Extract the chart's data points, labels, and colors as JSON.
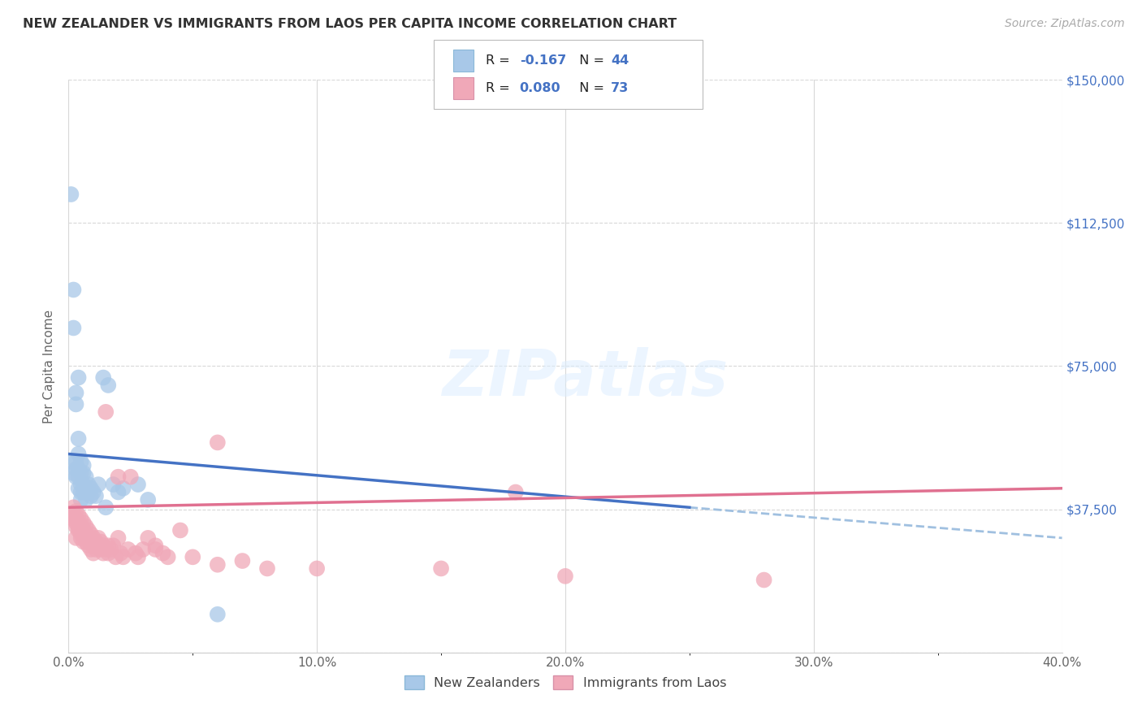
{
  "title": "NEW ZEALANDER VS IMMIGRANTS FROM LAOS PER CAPITA INCOME CORRELATION CHART",
  "source": "Source: ZipAtlas.com",
  "ylabel": "Per Capita Income",
  "yticks": [
    0,
    37500,
    75000,
    112500,
    150000
  ],
  "xlim": [
    0.0,
    0.4
  ],
  "ylim": [
    0,
    150000
  ],
  "background_color": "#ffffff",
  "grid_color": "#d8d8d8",
  "title_color": "#333333",
  "source_color": "#aaaaaa",
  "blue_color": "#a8c8e8",
  "pink_color": "#f0a8b8",
  "blue_line_color": "#4472c4",
  "pink_line_color": "#e07090",
  "dash_line_color": "#a0c0e0",
  "right_label_color": "#4472c4",
  "R_blue": "-0.167",
  "N_blue": "44",
  "R_pink": "0.080",
  "N_pink": "73",
  "nz_x": [
    0.001,
    0.002,
    0.002,
    0.003,
    0.003,
    0.003,
    0.003,
    0.003,
    0.004,
    0.004,
    0.004,
    0.004,
    0.004,
    0.004,
    0.005,
    0.005,
    0.005,
    0.005,
    0.005,
    0.006,
    0.006,
    0.006,
    0.006,
    0.007,
    0.007,
    0.007,
    0.008,
    0.008,
    0.009,
    0.009,
    0.01,
    0.011,
    0.012,
    0.014,
    0.016,
    0.018,
    0.02,
    0.022,
    0.028,
    0.032,
    0.001,
    0.002,
    0.06,
    0.015
  ],
  "nz_y": [
    120000,
    95000,
    85000,
    68000,
    65000,
    50000,
    48000,
    46000,
    56000,
    52000,
    48000,
    46000,
    43000,
    72000,
    50000,
    47000,
    44000,
    42000,
    40000,
    49000,
    47000,
    44000,
    42000,
    46000,
    43000,
    40000,
    44000,
    42000,
    43000,
    41000,
    42000,
    41000,
    44000,
    72000,
    70000,
    44000,
    42000,
    43000,
    44000,
    40000,
    50000,
    47000,
    10000,
    38000
  ],
  "laos_x": [
    0.001,
    0.002,
    0.002,
    0.003,
    0.003,
    0.003,
    0.003,
    0.004,
    0.004,
    0.004,
    0.004,
    0.005,
    0.005,
    0.005,
    0.005,
    0.006,
    0.006,
    0.006,
    0.006,
    0.007,
    0.007,
    0.007,
    0.008,
    0.008,
    0.008,
    0.009,
    0.009,
    0.009,
    0.01,
    0.01,
    0.01,
    0.01,
    0.011,
    0.011,
    0.012,
    0.012,
    0.013,
    0.013,
    0.014,
    0.014,
    0.015,
    0.015,
    0.016,
    0.016,
    0.017,
    0.018,
    0.019,
    0.02,
    0.021,
    0.022,
    0.024,
    0.025,
    0.027,
    0.028,
    0.03,
    0.032,
    0.035,
    0.038,
    0.04,
    0.045,
    0.05,
    0.06,
    0.07,
    0.08,
    0.1,
    0.15,
    0.2,
    0.28,
    0.06,
    0.18,
    0.035,
    0.02,
    0.003
  ],
  "laos_y": [
    36000,
    38000,
    35000,
    37000,
    35000,
    34000,
    33000,
    36000,
    34000,
    33000,
    32000,
    35000,
    33000,
    31000,
    30000,
    34000,
    32000,
    31000,
    29000,
    33000,
    31000,
    29000,
    32000,
    30000,
    28000,
    31000,
    29000,
    27000,
    30000,
    29000,
    28000,
    26000,
    29000,
    27000,
    30000,
    28000,
    29000,
    27000,
    28000,
    26000,
    63000,
    27000,
    28000,
    26000,
    27000,
    28000,
    25000,
    46000,
    26000,
    25000,
    27000,
    46000,
    26000,
    25000,
    27000,
    30000,
    27000,
    26000,
    25000,
    32000,
    25000,
    23000,
    24000,
    22000,
    22000,
    22000,
    20000,
    19000,
    55000,
    42000,
    28000,
    30000,
    30000
  ],
  "blue_line_x0": 0.0,
  "blue_line_y0": 52000,
  "blue_line_x1": 0.25,
  "blue_line_y1": 38000,
  "pink_line_x0": 0.0,
  "pink_line_y0": 38000,
  "pink_line_x1": 0.4,
  "pink_line_y1": 43000,
  "dash_line_x0": 0.25,
  "dash_line_y0": 38000,
  "dash_line_x1": 0.4,
  "dash_line_y1": 30000
}
